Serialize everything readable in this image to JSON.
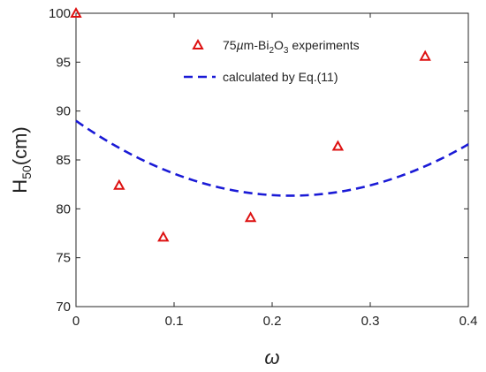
{
  "chart_data": {
    "type": "scatter",
    "xlabel": "ω",
    "ylabel": {
      "main": "H",
      "sub": "50",
      "tail": "(cm)"
    },
    "xlim": [
      0,
      0.4
    ],
    "ylim": [
      70,
      100
    ],
    "xticks": [
      0,
      0.1,
      0.2,
      0.3,
      0.4
    ],
    "xtick_labels": [
      "0",
      "0.1",
      "0.2",
      "0.3",
      "0.4"
    ],
    "yticks": [
      70,
      75,
      80,
      85,
      90,
      95,
      100
    ],
    "ytick_labels": [
      "70",
      "75",
      "80",
      "85",
      "90",
      "95",
      "100"
    ],
    "grid": false,
    "legend_position": "top-right",
    "series": [
      {
        "name": "75µm-Bi₂O₃ experiments",
        "legend_parts": [
          "75",
          "µ",
          "m-Bi",
          "2",
          "O",
          "3",
          " experiments"
        ],
        "kind": "markers",
        "marker": "triangle",
        "color": "#dd1111",
        "x": [
          0,
          0.044,
          0.089,
          0.178,
          0.267,
          0.356
        ],
        "y": [
          100,
          82.4,
          77.1,
          79.1,
          86.4,
          95.6
        ]
      },
      {
        "name": "calculated by Eq.(11)",
        "kind": "line",
        "line_style": "dashed",
        "color": "#1a1ad6",
        "quadratic_coefficients": [
          89.0,
          -70.0,
          160.0
        ],
        "x_range": [
          0,
          0.4
        ]
      }
    ]
  }
}
